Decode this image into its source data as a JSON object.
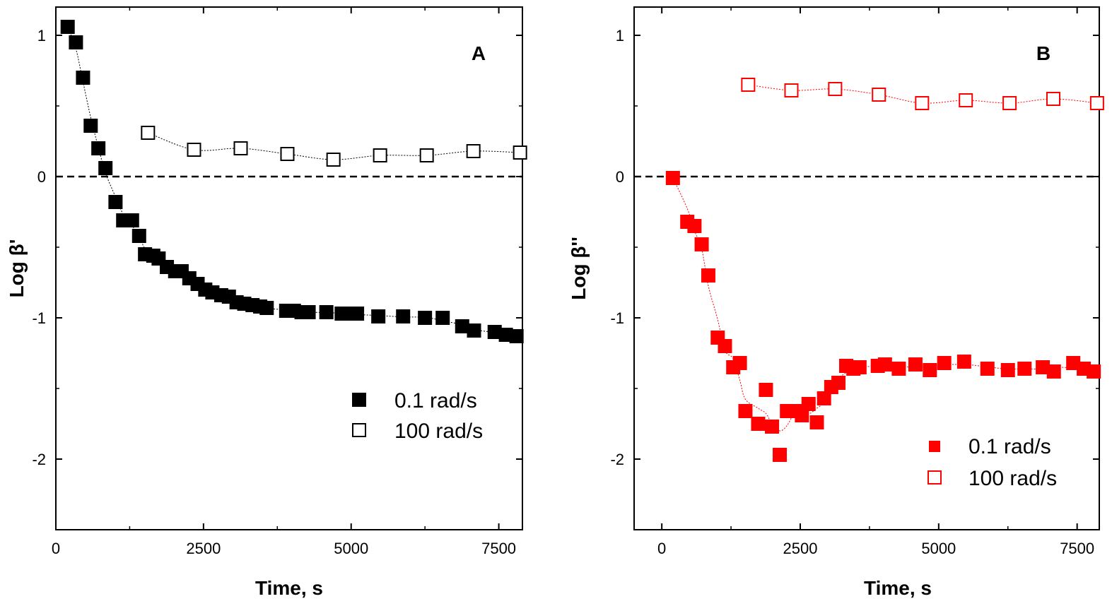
{
  "chart_data": [
    {
      "type": "scatter",
      "panel_label": "A",
      "title": "",
      "xlabel": "Time, s",
      "ylabel": "Log β'",
      "xlim": [
        0,
        7900
      ],
      "ylim": [
        -2.5,
        1.2
      ],
      "xticks": [
        0,
        2500,
        5000,
        7500
      ],
      "yticks": [
        1,
        0,
        -1,
        -2
      ],
      "xtick_labels": [
        "0",
        "2500",
        "5000",
        "7500"
      ],
      "ytick_labels": [
        "1",
        "0",
        "-1",
        "-2"
      ],
      "reference_line_y": 0,
      "color": "#000000",
      "legend_position": "bottom-right",
      "series": [
        {
          "name": "0.1 rad/s",
          "marker": "filled-square",
          "x": [
            200,
            340,
            460,
            590,
            720,
            840,
            1010,
            1140,
            1290,
            1410,
            1510,
            1650,
            1740,
            1880,
            2020,
            2130,
            2260,
            2400,
            2530,
            2650,
            2800,
            2930,
            3060,
            3190,
            3330,
            3460,
            3570,
            3900,
            4030,
            4160,
            4280,
            4580,
            4840,
            4970,
            5100,
            5460,
            5880,
            6250,
            6550,
            6880,
            7080,
            7430,
            7620,
            7800
          ],
          "y": [
            1.06,
            0.95,
            0.7,
            0.36,
            0.2,
            0.06,
            -0.18,
            -0.31,
            -0.31,
            -0.42,
            -0.55,
            -0.56,
            -0.58,
            -0.64,
            -0.67,
            -0.67,
            -0.72,
            -0.76,
            -0.8,
            -0.82,
            -0.84,
            -0.85,
            -0.89,
            -0.9,
            -0.91,
            -0.92,
            -0.93,
            -0.95,
            -0.95,
            -0.96,
            -0.96,
            -0.96,
            -0.97,
            -0.97,
            -0.97,
            -0.99,
            -0.99,
            -1.0,
            -1.0,
            -1.06,
            -1.09,
            -1.1,
            -1.12,
            -1.13
          ]
        },
        {
          "name": "100 rad/s",
          "marker": "open-square",
          "x": [
            1560,
            2340,
            3130,
            3920,
            4700,
            5490,
            6280,
            7070,
            7860
          ],
          "y": [
            0.31,
            0.19,
            0.2,
            0.16,
            0.12,
            0.15,
            0.15,
            0.18,
            0.17
          ]
        }
      ]
    },
    {
      "type": "scatter",
      "panel_label": "B",
      "title": "",
      "xlabel": "Time, s",
      "ylabel": "Log β''",
      "xlim": [
        -500,
        7900
      ],
      "ylim": [
        -2.5,
        1.2
      ],
      "xticks": [
        0,
        2500,
        5000,
        7500
      ],
      "yticks": [
        1,
        0,
        -1,
        -2
      ],
      "xtick_labels": [
        "0",
        "2500",
        "5000",
        "7500"
      ],
      "ytick_labels": [
        "1",
        "0",
        "-1",
        "-2"
      ],
      "reference_line_y": 0,
      "color": "#ff0000",
      "legend_position": "bottom-right",
      "series": [
        {
          "name": "0.1 rad/s",
          "marker": "filled-square",
          "x": [
            200,
            460,
            590,
            720,
            840,
            1010,
            1140,
            1290,
            1410,
            1510,
            1740,
            1880,
            1990,
            2130,
            2260,
            2400,
            2530,
            2650,
            2800,
            2930,
            3060,
            3190,
            3330,
            3460,
            3570,
            3900,
            4030,
            4280,
            4580,
            4840,
            5100,
            5460,
            5880,
            6250,
            6550,
            6880,
            7080,
            7430,
            7620,
            7800
          ],
          "y": [
            -0.01,
            -0.32,
            -0.35,
            -0.48,
            -0.7,
            -1.14,
            -1.2,
            -1.35,
            -1.32,
            -1.66,
            -1.75,
            -1.51,
            -1.77,
            -1.97,
            -1.66,
            -1.66,
            -1.69,
            -1.61,
            -1.74,
            -1.57,
            -1.49,
            -1.46,
            -1.34,
            -1.36,
            -1.35,
            -1.34,
            -1.33,
            -1.36,
            -1.33,
            -1.37,
            -1.32,
            -1.31,
            -1.36,
            -1.37,
            -1.36,
            -1.35,
            -1.38,
            -1.32,
            -1.36,
            -1.38
          ]
        },
        {
          "name": "100 rad/s",
          "marker": "open-square",
          "x": [
            1560,
            2340,
            3130,
            3920,
            4700,
            5490,
            6280,
            7070,
            7860
          ],
          "y": [
            0.65,
            0.61,
            0.62,
            0.58,
            0.52,
            0.54,
            0.52,
            0.55,
            0.52
          ]
        }
      ]
    }
  ]
}
